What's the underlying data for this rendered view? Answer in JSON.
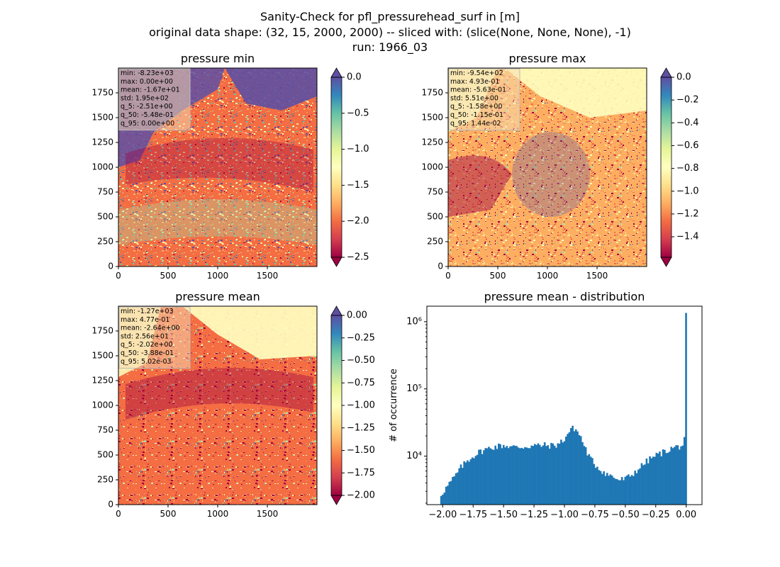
{
  "figure": {
    "title_lines": [
      "Sanity-Check for pfl_pressurehead_surf in [m]",
      "original data shape: (32, 15, 2000, 2000) -- sliced with: (slice(None, None, None), -1)",
      "run: 1966_03"
    ]
  },
  "palette": {
    "spectral_reversed": [
      "#9e0142",
      "#d53e4f",
      "#f46d43",
      "#fdae61",
      "#fee08b",
      "#ffffbf",
      "#e6f598",
      "#abdda4",
      "#66c2a5",
      "#3288bd",
      "#5e4fa2"
    ],
    "over_color": "#5e4fa2",
    "under_color": "#9e0142",
    "hist_bar": "#1f77b4",
    "statbox_bg": "#f5deb3"
  },
  "chart_data": [
    {
      "type": "heatmap",
      "title": "pressure min",
      "xlim": [
        0,
        2000
      ],
      "ylim": [
        0,
        2000
      ],
      "x_ticks": [
        0,
        500,
        1000,
        1500
      ],
      "y_ticks": [
        0,
        250,
        500,
        750,
        1000,
        1250,
        1500,
        1750
      ],
      "colorbar": {
        "vmin": -2.5,
        "vmax": 0.0,
        "ticks": [
          0.0,
          -0.5,
          -1.0,
          -1.5,
          -2.0,
          -2.5
        ],
        "tick_labels": [
          "0.0",
          "−0.5",
          "−1.0",
          "−1.5",
          "−2.0",
          "−2.5"
        ],
        "extend": "both"
      },
      "stats": [
        "min: -8.23e+03",
        "max: 0.00e+00",
        "mean: -1.67e+01",
        "std: 1.95e+02",
        "q_5: -2.51e+00",
        "q_50: -5.48e-01",
        "q_95: 0.00e+00"
      ]
    },
    {
      "type": "heatmap",
      "title": "pressure max",
      "xlim": [
        0,
        2000
      ],
      "ylim": [
        0,
        2000
      ],
      "x_ticks": [
        0,
        500,
        1000,
        1500
      ],
      "y_ticks": [
        0,
        250,
        500,
        750,
        1000,
        1250,
        1500,
        1750
      ],
      "colorbar": {
        "vmin": -1.58,
        "vmax": 0.0,
        "ticks": [
          0.0,
          -0.2,
          -0.4,
          -0.6,
          -0.8,
          -1.0,
          -1.2,
          -1.4
        ],
        "tick_labels": [
          "0.0",
          "−0.2",
          "−0.4",
          "−0.6",
          "−0.8",
          "−1.0",
          "−1.2",
          "−1.4"
        ],
        "extend": "both"
      },
      "stats": [
        "min: -9.54e+02",
        "max: 4.93e-01",
        "mean: -5.63e-01",
        "std: 5.51e+00",
        "q_5: -1.58e+00",
        "q_50: -1.15e-01",
        "q_95: 1.44e-02"
      ]
    },
    {
      "type": "heatmap",
      "title": "pressure mean",
      "xlim": [
        0,
        2000
      ],
      "ylim": [
        0,
        2000
      ],
      "x_ticks": [
        0,
        500,
        1000,
        1500
      ],
      "y_ticks": [
        0,
        250,
        500,
        750,
        1000,
        1250,
        1500,
        1750
      ],
      "colorbar": {
        "vmin": -2.0,
        "vmax": 0.0,
        "ticks": [
          0.0,
          -0.25,
          -0.5,
          -0.75,
          -1.0,
          -1.25,
          -1.5,
          -1.75,
          -2.0
        ],
        "tick_labels": [
          "0.00",
          "−0.25",
          "−0.50",
          "−0.75",
          "−1.00",
          "−1.25",
          "−1.50",
          "−1.75",
          "−2.00"
        ],
        "extend": "both"
      },
      "stats": [
        "min: -1.27e+03",
        "max: 4.77e-01",
        "mean: -2.64e+00",
        "std: 2.56e+01",
        "q_5: -2.02e+00",
        "q_50: -3.88e-01",
        "q_95: 5.02e-03"
      ]
    },
    {
      "type": "bar",
      "title": "pressure mean - distribution",
      "ylabel": "# of occurrence",
      "xlabel": "",
      "yscale": "log",
      "xlim": [
        -2.13,
        0.13
      ],
      "ylim": [
        1900,
        1700000
      ],
      "x_ticks": [
        -2.0,
        -1.75,
        -1.5,
        -1.25,
        -1.0,
        -0.75,
        -0.5,
        -0.25,
        0.0
      ],
      "x_tick_labels": [
        "−2.00",
        "−1.75",
        "−1.50",
        "−1.25",
        "−1.00",
        "−0.75",
        "−0.50",
        "−0.25",
        "0.00"
      ],
      "y_ticks": [
        10000,
        100000,
        1000000
      ],
      "y_tick_labels": [
        "10⁴",
        "10⁵",
        "10⁶"
      ],
      "bins": {
        "start": -2.02,
        "end": 0.005,
        "count": 150
      },
      "profile": {
        "x": [
          -2.02,
          -2.0,
          -1.95,
          -1.9,
          -1.85,
          -1.8,
          -1.75,
          -1.7,
          -1.65,
          -1.6,
          -1.55,
          -1.5,
          -1.45,
          -1.4,
          -1.35,
          -1.3,
          -1.25,
          -1.2,
          -1.15,
          -1.1,
          -1.05,
          -1.0,
          -0.97,
          -0.95,
          -0.92,
          -0.9,
          -0.87,
          -0.85,
          -0.8,
          -0.75,
          -0.7,
          -0.65,
          -0.6,
          -0.55,
          -0.5,
          -0.45,
          -0.4,
          -0.35,
          -0.3,
          -0.25,
          -0.2,
          -0.15,
          -0.1,
          -0.05,
          -0.03,
          -0.02,
          -0.01,
          -0.005,
          0.0
        ],
        "y": [
          2600,
          2900,
          3800,
          5000,
          6800,
          8500,
          10000,
          11500,
          12500,
          13500,
          14000,
          14500,
          14000,
          13500,
          13700,
          14000,
          14300,
          14500,
          14400,
          14300,
          15000,
          18000,
          22000,
          25000,
          26000,
          24000,
          20000,
          16000,
          10000,
          7500,
          6200,
          5400,
          4900,
          4400,
          4600,
          5200,
          6300,
          7600,
          9000,
          10200,
          11200,
          12300,
          13500,
          14000,
          14500,
          16000,
          18500,
          23000,
          1350000
        ]
      }
    }
  ]
}
